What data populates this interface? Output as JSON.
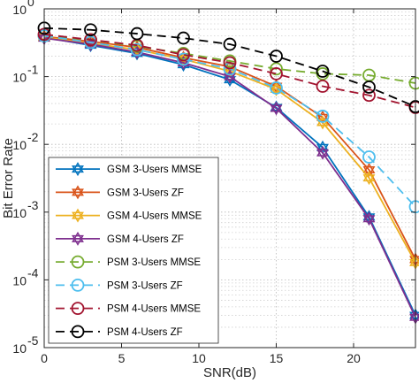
{
  "chart_data": {
    "type": "line",
    "xlabel": "SNR(dB)",
    "ylabel": "Bit Error Rate",
    "xlim": [
      0,
      24
    ],
    "ylim": [
      1e-05,
      1
    ],
    "yscale": "log",
    "grid": "major and minor, dotted",
    "legend_position": "bottom-left",
    "x_ticks": [
      "0",
      "5",
      "10",
      "15",
      "20"
    ],
    "y_ticks": [
      {
        "base": "10",
        "exp": "0"
      },
      {
        "base": "10",
        "exp": "-1"
      },
      {
        "base": "10",
        "exp": "-2"
      },
      {
        "base": "10",
        "exp": "-3"
      },
      {
        "base": "10",
        "exp": "-4"
      },
      {
        "base": "10",
        "exp": "-5"
      }
    ],
    "x": [
      0,
      3,
      6,
      9,
      12,
      15,
      18,
      21,
      24
    ],
    "series": [
      {
        "name": "GSM 3-Users MMSE",
        "color": "#0072BD",
        "dash": "solid",
        "marker": "hexagram",
        "values": [
          0.38,
          0.29,
          0.22,
          0.15,
          0.09,
          0.035,
          0.009,
          0.00085,
          3e-05
        ]
      },
      {
        "name": "GSM 3-Users ZF",
        "color": "#D95319",
        "dash": "solid",
        "marker": "hexagram",
        "values": [
          0.39,
          0.33,
          0.27,
          0.19,
          0.14,
          0.072,
          0.025,
          0.0042,
          0.0002
        ]
      },
      {
        "name": "GSM 4-Users MMSE",
        "color": "#EDB120",
        "dash": "solid",
        "marker": "hexagram",
        "values": [
          0.38,
          0.31,
          0.25,
          0.18,
          0.12,
          0.065,
          0.021,
          0.0032,
          0.00018
        ]
      },
      {
        "name": "GSM 4-Users ZF",
        "color": "#7E2F8E",
        "dash": "solid",
        "marker": "hexagram",
        "values": [
          0.37,
          0.3,
          0.23,
          0.16,
          0.1,
          0.034,
          0.0075,
          0.0008,
          2.8e-05
        ]
      },
      {
        "name": "PSM 3-Users MMSE",
        "color": "#77AC30",
        "dash": "dashed",
        "marker": "circle",
        "values": [
          0.4,
          0.35,
          0.28,
          0.22,
          0.17,
          0.13,
          0.11,
          0.105,
          0.08
        ]
      },
      {
        "name": "PSM 3-Users ZF",
        "color": "#4DBEEE",
        "dash": "dashed",
        "marker": "circle",
        "values": [
          0.4,
          0.32,
          0.25,
          0.18,
          0.13,
          0.068,
          0.026,
          0.0065,
          0.0012
        ]
      },
      {
        "name": "PSM 4-Users MMSE",
        "color": "#A2142F",
        "dash": "dashed",
        "marker": "circle",
        "values": [
          0.42,
          0.35,
          0.29,
          0.21,
          0.16,
          0.11,
          0.072,
          0.053,
          0.035
        ]
      },
      {
        "name": "PSM 4-Users ZF",
        "color": "#000000",
        "dash": "dashed",
        "marker": "circle",
        "values": [
          0.52,
          0.49,
          0.43,
          0.37,
          0.3,
          0.2,
          0.12,
          0.07,
          0.036
        ]
      }
    ]
  }
}
